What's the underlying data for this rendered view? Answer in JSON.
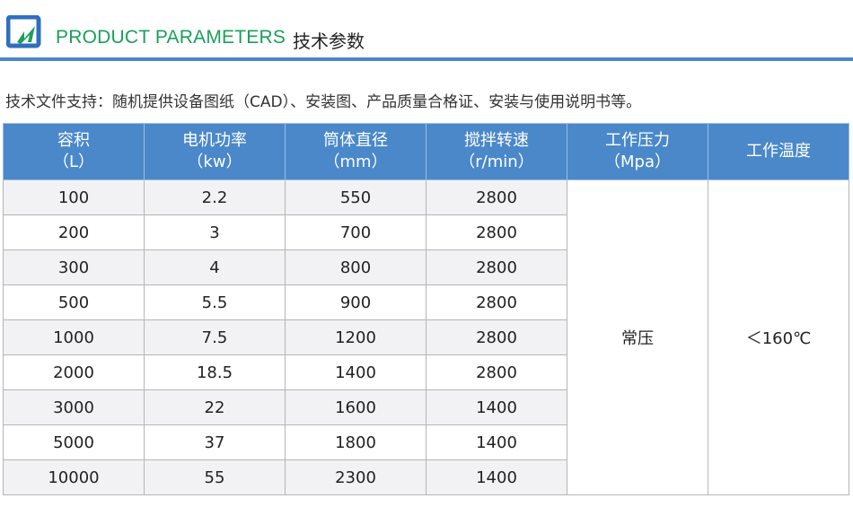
{
  "header": {
    "logo_icon": "product-logo-icon",
    "title_en": "PRODUCT PARAMETERS",
    "title_cn": "技术参数",
    "accent_color": "#4a86c8",
    "title_color": "#1aa05a"
  },
  "note": "技术文件支持：随机提供设备图纸（CAD）、安装图、产品质量合格证、安装与使用说明书等。",
  "table": {
    "columns": [
      {
        "name": "容积",
        "unit": "（L）"
      },
      {
        "name": "电机功率",
        "unit": "（kw）"
      },
      {
        "name": "筒体直径",
        "unit": "（mm）"
      },
      {
        "name": "搅拌转速",
        "unit": "（r/min）"
      },
      {
        "name": "工作压力",
        "unit": "（Mpa）"
      },
      {
        "name": "工作温度",
        "unit": ""
      }
    ],
    "rows": [
      [
        "100",
        "2.2",
        "550",
        "2800"
      ],
      [
        "200",
        "3",
        "700",
        "2800"
      ],
      [
        "300",
        "4",
        "800",
        "2800"
      ],
      [
        "500",
        "5.5",
        "900",
        "2800"
      ],
      [
        "1000",
        "7.5",
        "1200",
        "2800"
      ],
      [
        "2000",
        "18.5",
        "1400",
        "2800"
      ],
      [
        "3000",
        "22",
        "1600",
        "1400"
      ],
      [
        "5000",
        "37",
        "1800",
        "1400"
      ],
      [
        "10000",
        "55",
        "2300",
        "1400"
      ]
    ],
    "pressure": "常压",
    "temperature": "＜160℃",
    "header_color": "#4a88ca"
  }
}
